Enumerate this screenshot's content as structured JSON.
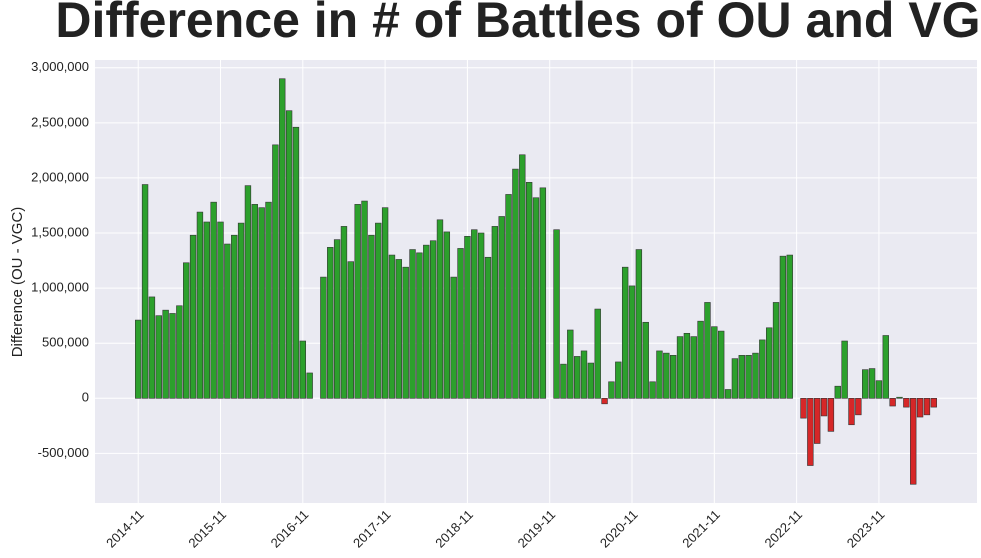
{
  "chart_data": {
    "type": "bar",
    "title": "Difference in # of Battles of OU and VGC",
    "y_label": "Difference (OU - VGC)",
    "categories": [
      "2014-11",
      null,
      null,
      null,
      null,
      null,
      null,
      null,
      null,
      null,
      null,
      null,
      "2015-11",
      null,
      null,
      null,
      null,
      null,
      null,
      null,
      null,
      null,
      null,
      null,
      "2016-11",
      null,
      null,
      null,
      null,
      null,
      null,
      null,
      null,
      null,
      null,
      null,
      "2017-11",
      null,
      null,
      null,
      null,
      null,
      null,
      null,
      null,
      null,
      null,
      null,
      "2018-11",
      null,
      null,
      null,
      null,
      null,
      null,
      null,
      null,
      null,
      null,
      null,
      "2019-11",
      null,
      null,
      null,
      null,
      null,
      null,
      null,
      null,
      null,
      null,
      null,
      "2020-11",
      null,
      null,
      null,
      null,
      null,
      null,
      null,
      null,
      null,
      null,
      null,
      "2021-11",
      null,
      null,
      null,
      null,
      null,
      null,
      null,
      null,
      null,
      null,
      null,
      "2022-11",
      null,
      null,
      null,
      null,
      null,
      null,
      null,
      null,
      null,
      null,
      null,
      "2023-11",
      null,
      null,
      null,
      null,
      null,
      null,
      null,
      null
    ],
    "values": [
      710000,
      1940000,
      920000,
      750000,
      800000,
      770000,
      840000,
      1230000,
      1480000,
      1690000,
      1600000,
      1780000,
      1600000,
      1400000,
      1480000,
      1590000,
      1930000,
      1760000,
      1730000,
      1780000,
      2300000,
      2900000,
      2610000,
      2460000,
      520000,
      230000,
      null,
      1100000,
      1370000,
      1440000,
      1560000,
      1240000,
      1760000,
      1790000,
      1480000,
      1590000,
      1730000,
      1300000,
      1260000,
      1190000,
      1350000,
      1320000,
      1390000,
      1430000,
      1620000,
      1510000,
      1100000,
      1360000,
      1470000,
      1530000,
      1500000,
      1280000,
      1560000,
      1650000,
      1850000,
      2080000,
      2210000,
      1960000,
      1820000,
      1910000,
      null,
      1530000,
      310000,
      620000,
      380000,
      430000,
      320000,
      810000,
      -50000,
      150000,
      330000,
      1190000,
      1020000,
      1350000,
      690000,
      150000,
      430000,
      410000,
      390000,
      560000,
      590000,
      560000,
      700000,
      870000,
      650000,
      610000,
      80000,
      360000,
      390000,
      390000,
      410000,
      530000,
      640000,
      870000,
      1290000,
      1300000,
      null,
      -180000,
      -610000,
      -410000,
      -160000,
      -300000,
      110000,
      520000,
      -240000,
      -150000,
      260000,
      270000,
      160000,
      570000,
      -70000,
      10000,
      -80000,
      -780000,
      -170000,
      -150000,
      -80000
    ],
    "color": "#2ca02c",
    "negative_color": "#d62728",
    "ylim": [
      -950000,
      3070000
    ],
    "yticks": [
      {
        "value": -500000,
        "label": "-500,000"
      },
      0,
      {
        "value": 500000,
        "label": "500,000"
      },
      {
        "value": 1000000,
        "label": "1,000,000"
      },
      {
        "value": 1500000,
        "label": "1,500,000"
      },
      {
        "value": 2000000,
        "label": "2,000,000"
      },
      {
        "value": 2500000,
        "label": "2,500,000"
      },
      {
        "value": 3000000,
        "label": "3,000,000"
      }
    ],
    "grid": true
  }
}
